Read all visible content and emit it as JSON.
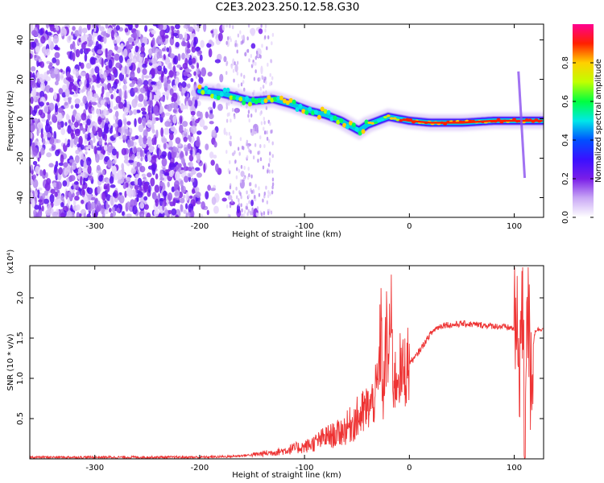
{
  "title": "C2E3.2023.250.12.58.G30",
  "chart_data": [
    {
      "type": "heatmap",
      "name": "spectrogram",
      "xlabel": "Height of straight line (km)",
      "ylabel": "Frequency (Hz)",
      "xlim": [
        -362,
        128
      ],
      "ylim": [
        -50,
        48
      ],
      "xticks": [
        -300,
        -200,
        -100,
        0,
        100
      ],
      "xtick_labels": [
        "-300",
        "-200",
        "-100",
        "0",
        "100"
      ],
      "yticks": [
        40,
        20,
        0,
        -20,
        -40
      ],
      "ytick_labels": [
        "40",
        "20",
        "0",
        "-20",
        "-40"
      ],
      "colorbar": {
        "label": "Normalized spectral amplitude",
        "range": [
          0,
          1
        ],
        "ticks": [
          0.0,
          0.2,
          0.4,
          0.6,
          0.8
        ],
        "tick_labels": [
          "0.0",
          "0.2",
          "0.4",
          "0.6",
          "0.8"
        ],
        "colormap": [
          "#ffffff",
          "#c9a8f5",
          "#7a1ee8",
          "#3a10ff",
          "#0050ff",
          "#00e8e8",
          "#00ff40",
          "#c0ff00",
          "#ffd000",
          "#ff2000",
          "#ff0090"
        ]
      },
      "ridge": {
        "x": [
          -200,
          -180,
          -165,
          -150,
          -130,
          -110,
          -95,
          -80,
          -65,
          -55,
          -48,
          -40,
          -30,
          -20,
          -10,
          0,
          20,
          50,
          80,
          100,
          128
        ],
        "y": [
          14,
          13,
          11,
          9,
          10,
          7,
          4,
          2,
          -1,
          -4,
          -6,
          -3,
          -1,
          1,
          0,
          -1,
          -2,
          -2,
          -1,
          -1,
          -1
        ]
      },
      "spike": {
        "x": 107,
        "y_range": [
          -30,
          24
        ]
      },
      "grid": false
    },
    {
      "type": "line",
      "name": "snr",
      "xlabel": "Height of straight line (km)",
      "ylabel": "SNR (10 * v/v)",
      "y_multiplier": "(x10⁴)",
      "xlim": [
        -362,
        128
      ],
      "ylim": [
        0,
        2.4
      ],
      "xticks": [
        -300,
        -200,
        -100,
        0,
        100
      ],
      "xtick_labels": [
        "-300",
        "-200",
        "-100",
        "0",
        "100"
      ],
      "yticks": [
        0.5,
        1.0,
        1.5,
        2.0
      ],
      "ytick_labels": [
        "0.5",
        "1.0",
        "1.5",
        "2.0"
      ],
      "color": "#ee3333",
      "series": [
        {
          "x": [
            -362,
            -300,
            -250,
            -220,
            -200,
            -170,
            -150,
            -130,
            -120,
            -110,
            -100,
            -90,
            -80,
            -70,
            -60,
            -50,
            -45,
            -40,
            -35,
            -30,
            -27,
            -25,
            -22,
            -20,
            -18,
            -15,
            -12,
            -10,
            -8,
            -5,
            -2,
            0,
            5,
            10,
            15,
            20,
            25,
            30,
            35,
            40,
            50,
            60,
            70,
            80,
            90,
            100,
            105,
            108,
            110,
            112,
            115,
            120,
            128
          ],
          "y": [
            0.02,
            0.02,
            0.02,
            0.02,
            0.02,
            0.03,
            0.05,
            0.08,
            0.1,
            0.13,
            0.15,
            0.2,
            0.27,
            0.3,
            0.38,
            0.5,
            0.55,
            0.62,
            0.7,
            0.9,
            1.6,
            0.7,
            1.5,
            1.2,
            1.8,
            0.95,
            1.0,
            1.2,
            1.0,
            1.1,
            1.15,
            1.2,
            1.25,
            1.35,
            1.45,
            1.55,
            1.62,
            1.65,
            1.67,
            1.66,
            1.68,
            1.67,
            1.66,
            1.65,
            1.64,
            1.62,
            1.3,
            1.9,
            0.1,
            2.3,
            1.1,
            1.6,
            1.62
          ]
        }
      ],
      "grid": false
    }
  ]
}
